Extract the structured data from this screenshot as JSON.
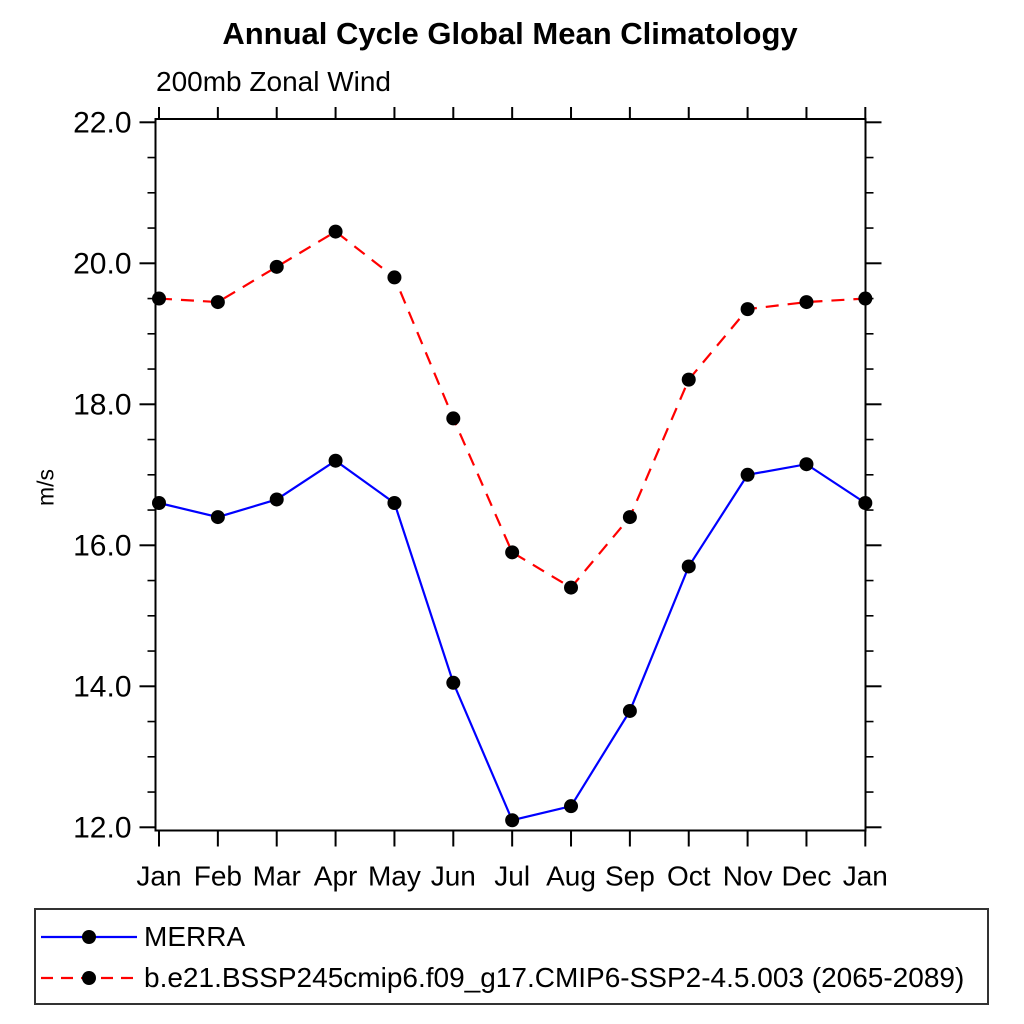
{
  "figure": {
    "title": "Annual Cycle Global Mean Climatology",
    "subtitle": "200mb Zonal Wind",
    "ylabel": "m/s"
  },
  "legend": {
    "items": [
      {
        "label": "MERRA",
        "color": "#0000ff",
        "style": "solid"
      },
      {
        "label": "b.e21.BSSP245cmip6.f09_g17.CMIP6-SSP2-4.5.003 (2065-2089)",
        "color": "#ff0000",
        "style": "dashed"
      }
    ],
    "marker_color": "#000000"
  },
  "colors": {
    "axis": "#000000",
    "merra_line": "#0000ff",
    "model_line": "#ff0000",
    "marker": "#000000"
  },
  "chart_data": {
    "type": "line",
    "title": "Annual Cycle Global Mean Climatology",
    "subtitle": "200mb Zonal Wind",
    "xlabel": "",
    "ylabel": "m/s",
    "categories": [
      "Jan",
      "Feb",
      "Mar",
      "Apr",
      "May",
      "Jun",
      "Jul",
      "Aug",
      "Sep",
      "Oct",
      "Nov",
      "Dec",
      "Jan"
    ],
    "series": [
      {
        "name": "MERRA",
        "color": "#0000ff",
        "dash": "solid",
        "marker": "circle",
        "values": [
          16.6,
          16.4,
          16.65,
          17.2,
          16.6,
          14.05,
          12.1,
          12.3,
          13.65,
          15.7,
          17.0,
          17.15,
          16.6
        ]
      },
      {
        "name": "b.e21.BSSP245cmip6.f09_g17.CMIP6-SSP2-4.5.003 (2065-2089)",
        "color": "#ff0000",
        "dash": "dashed",
        "marker": "circle",
        "values": [
          19.5,
          19.45,
          19.95,
          20.45,
          19.8,
          17.8,
          15.9,
          15.4,
          16.4,
          18.35,
          19.35,
          19.45,
          19.5
        ]
      }
    ],
    "ylim": [
      12.0,
      22.0
    ],
    "yticks_major": [
      12.0,
      14.0,
      16.0,
      18.0,
      20.0,
      22.0
    ],
    "ytick_minor_step": 0.5,
    "ytick_label_format": "one_decimal",
    "grid": "off",
    "frame": "box_with_outward_ticks",
    "legend_position": "bottom"
  }
}
